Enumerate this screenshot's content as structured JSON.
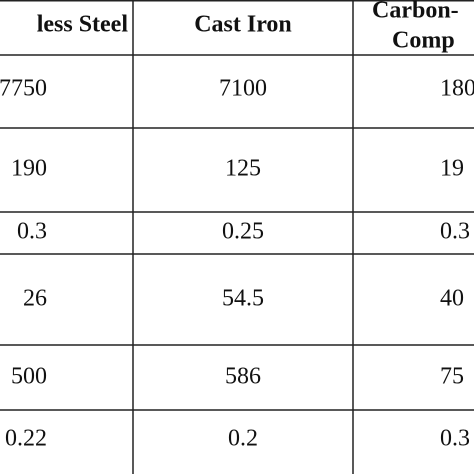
{
  "table": {
    "header": [
      "less Steel",
      "Cast Iron",
      [
        "Carbon-",
        "Comp"
      ]
    ],
    "rows": [
      [
        "7750",
        "7100",
        "180"
      ],
      [
        "190",
        "125",
        "19"
      ],
      [
        "0.3",
        "0.25",
        "0.3"
      ],
      [
        "26",
        "54.5",
        "40"
      ],
      [
        "500",
        "586",
        "75"
      ],
      [
        "0.22",
        "0.2",
        "0.3"
      ]
    ]
  }
}
